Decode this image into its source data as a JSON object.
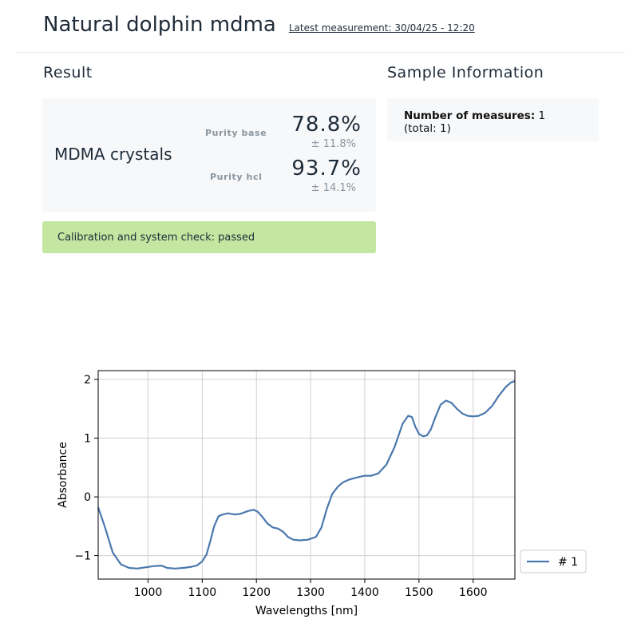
{
  "header": {
    "title": "Natural dolphin mdma",
    "latest_measurement": "Latest measurement: 30/04/25 - 12:20"
  },
  "result": {
    "section_title": "Result",
    "substance": "MDMA crystals",
    "purity_base_label": "Purity base",
    "purity_base_value": "78.8%",
    "purity_base_error": "± 11.8%",
    "purity_hcl_label": "Purity hcl",
    "purity_hcl_value": "93.7%",
    "purity_hcl_error": "± 14.1%",
    "calibration_status": "Calibration and system check: passed",
    "calibration_color": "#c3e6a1"
  },
  "sample_info": {
    "section_title": "Sample Information",
    "measures_label": "Number of measures:",
    "measures_value": "1",
    "total": "(total: 1)"
  },
  "chart_data": {
    "type": "line",
    "title": "",
    "xlabel": "Wavelengths [nm]",
    "ylabel": "Absorbance",
    "xlim": [
      908,
      1677
    ],
    "ylim": [
      -1.4,
      2.15
    ],
    "xticks": [
      1000,
      1100,
      1200,
      1300,
      1400,
      1500,
      1600
    ],
    "yticks": [
      -1,
      0,
      1,
      2
    ],
    "ytick_labels": [
      "−1",
      "0",
      "1",
      "2"
    ],
    "grid": true,
    "legend_position": "outside-right",
    "series": [
      {
        "name": "# 1",
        "color": "#4a78ad",
        "x": [
          908,
          920,
          935,
          950,
          965,
          980,
          995,
          1010,
          1025,
          1035,
          1050,
          1065,
          1080,
          1090,
          1100,
          1108,
          1115,
          1122,
          1130,
          1138,
          1148,
          1160,
          1170,
          1185,
          1195,
          1202,
          1210,
          1220,
          1230,
          1240,
          1250,
          1258,
          1268,
          1280,
          1295,
          1310,
          1320,
          1330,
          1340,
          1350,
          1360,
          1370,
          1385,
          1400,
          1412,
          1425,
          1440,
          1455,
          1470,
          1480,
          1487,
          1493,
          1500,
          1508,
          1515,
          1522,
          1530,
          1540,
          1550,
          1560,
          1570,
          1580,
          1590,
          1600,
          1610,
          1622,
          1635,
          1648,
          1660,
          1670,
          1677
        ],
        "y": [
          -0.18,
          -0.5,
          -0.95,
          -1.15,
          -1.21,
          -1.22,
          -1.2,
          -1.18,
          -1.17,
          -1.21,
          -1.22,
          -1.21,
          -1.19,
          -1.17,
          -1.1,
          -0.98,
          -0.75,
          -0.5,
          -0.33,
          -0.3,
          -0.28,
          -0.3,
          -0.29,
          -0.24,
          -0.22,
          -0.25,
          -0.33,
          -0.45,
          -0.52,
          -0.54,
          -0.6,
          -0.68,
          -0.73,
          -0.74,
          -0.73,
          -0.68,
          -0.52,
          -0.2,
          0.05,
          0.17,
          0.25,
          0.29,
          0.33,
          0.36,
          0.36,
          0.4,
          0.55,
          0.85,
          1.25,
          1.38,
          1.36,
          1.2,
          1.07,
          1.03,
          1.05,
          1.15,
          1.35,
          1.57,
          1.64,
          1.6,
          1.5,
          1.42,
          1.38,
          1.37,
          1.38,
          1.43,
          1.55,
          1.73,
          1.87,
          1.95,
          1.97
        ]
      }
    ]
  }
}
